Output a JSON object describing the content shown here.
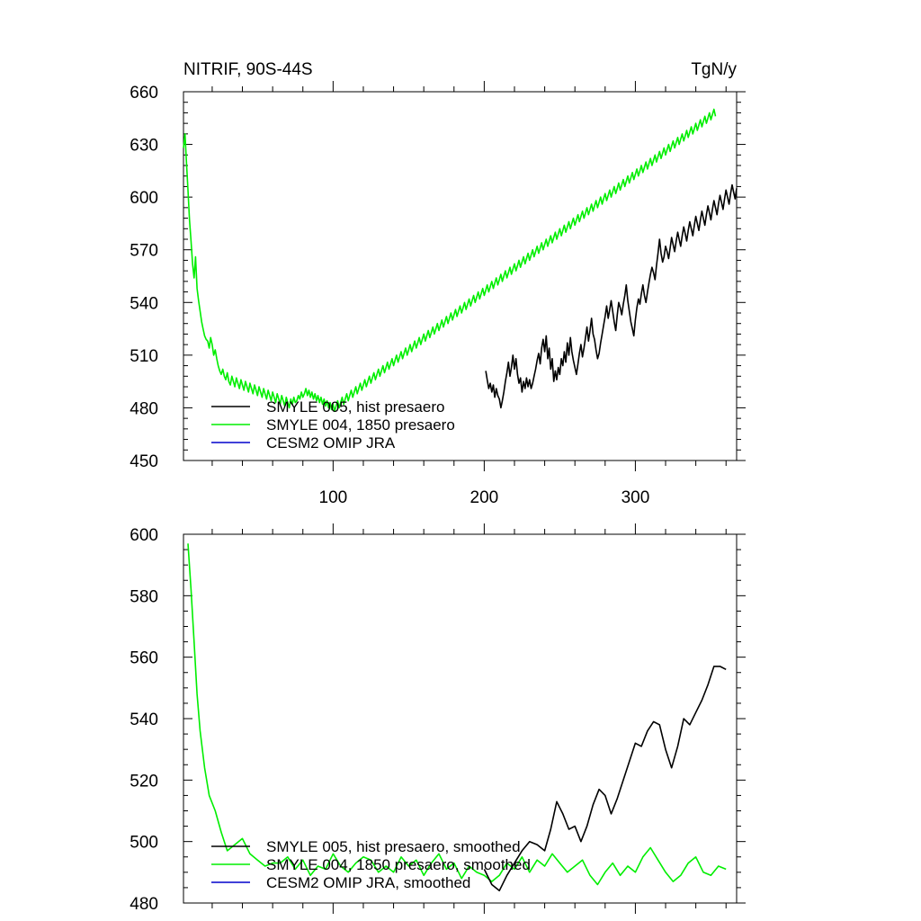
{
  "chart_data": [
    {
      "type": "line",
      "title_left": "NITRIF, 90S-44S",
      "title_right": "TgN/y",
      "xlim": [
        1,
        367
      ],
      "ylim": [
        450,
        660
      ],
      "x_ticks": [
        100,
        200,
        300
      ],
      "y_ticks": [
        450,
        480,
        510,
        540,
        570,
        600,
        630,
        660
      ],
      "legend": [
        "SMYLE 005, hist presaero",
        "SMYLE 004, 1850 presaero",
        "CESM2 OMIP JRA"
      ],
      "colors": [
        "#000000",
        "#00ee00",
        "#0000cc"
      ],
      "series": [
        {
          "name": "SMYLE 004, 1850 presaero",
          "color": "#00ee00",
          "x_start": 1,
          "values": [
            628,
            636,
            619,
            604,
            587,
            575,
            562,
            554,
            566,
            548,
            541,
            535,
            529,
            525,
            521,
            519,
            518,
            514,
            520,
            516,
            510,
            513,
            508,
            504,
            501,
            499,
            502,
            498,
            496,
            500,
            495,
            493,
            498,
            495,
            492,
            497,
            494,
            491,
            496,
            493,
            490,
            495,
            492,
            489,
            494,
            491,
            488,
            493,
            490,
            487,
            492,
            489,
            486,
            491,
            488,
            485,
            490,
            487,
            484,
            489,
            486,
            483,
            488,
            485,
            482,
            487,
            484,
            481,
            486,
            483,
            480,
            485,
            482,
            486,
            483,
            484,
            487,
            485,
            489,
            486,
            488,
            491,
            487,
            490,
            486,
            489,
            485,
            488,
            484,
            487,
            483,
            486,
            482,
            485,
            481,
            484,
            480,
            483,
            479,
            482,
            478,
            481,
            484,
            480,
            483,
            486,
            482,
            485,
            488,
            484,
            487,
            490,
            486,
            489,
            492,
            488,
            491,
            494,
            490,
            493,
            496,
            492,
            495,
            498,
            494,
            497,
            500,
            496,
            499,
            502,
            498,
            501,
            504,
            500,
            503,
            506,
            502,
            505,
            508,
            504,
            507,
            510,
            506,
            509,
            512,
            508,
            511,
            514,
            510,
            513,
            516,
            512,
            515,
            518,
            514,
            517,
            520,
            516,
            519,
            522,
            518,
            521,
            524,
            520,
            523,
            526,
            522,
            525,
            528,
            524,
            527,
            530,
            526,
            529,
            532,
            528,
            531,
            534,
            530,
            533,
            536,
            532,
            535,
            538,
            534,
            537,
            540,
            536,
            539,
            542,
            538,
            541,
            544,
            540,
            543,
            546,
            542,
            545,
            548,
            544,
            547,
            550,
            546,
            549,
            552,
            548,
            551,
            554,
            550,
            553,
            556,
            552,
            555,
            558,
            554,
            557,
            560,
            556,
            559,
            562,
            558,
            561,
            564,
            560,
            563,
            566,
            562,
            565,
            568,
            564,
            567,
            570,
            566,
            569,
            572,
            568,
            571,
            574,
            570,
            573,
            576,
            572,
            575,
            578,
            574,
            577,
            580,
            576,
            579,
            582,
            578,
            581,
            584,
            580,
            583,
            586,
            582,
            585,
            588,
            584,
            587,
            590,
            586,
            589,
            592,
            588,
            591,
            594,
            590,
            593,
            596,
            592,
            595,
            598,
            594,
            597,
            600,
            596,
            599,
            602,
            598,
            601,
            604,
            600,
            603,
            606,
            602,
            605,
            608,
            604,
            607,
            610,
            606,
            609,
            612,
            608,
            611,
            614,
            610,
            613,
            616,
            612,
            615,
            618,
            614,
            617,
            620,
            616,
            619,
            622,
            618,
            621,
            624,
            620,
            623,
            626,
            622,
            625,
            628,
            624,
            627,
            630,
            626,
            629,
            632,
            628,
            631,
            634,
            630,
            633,
            636,
            632,
            635,
            638,
            634,
            637,
            640,
            636,
            639,
            642,
            638,
            641,
            644,
            640,
            643,
            646,
            642,
            645,
            648,
            644,
            647,
            650,
            646
          ]
        },
        {
          "name": "SMYLE 005, hist presaero",
          "color": "#000000",
          "x_start": 201,
          "values": [
            501,
            496,
            491,
            494,
            489,
            493,
            486,
            491,
            487,
            485,
            480,
            484,
            489,
            495,
            500,
            506,
            498,
            503,
            510,
            502,
            508,
            499,
            494,
            497,
            489,
            495,
            491,
            497,
            492,
            496,
            491,
            494,
            498,
            502,
            507,
            511,
            505,
            514,
            519,
            512,
            521,
            508,
            514,
            502,
            508,
            495,
            501,
            496,
            503,
            499,
            508,
            504,
            512,
            506,
            517,
            510,
            520,
            512,
            507,
            503,
            499,
            505,
            511,
            516,
            509,
            514,
            520,
            526,
            518,
            524,
            531,
            522,
            519,
            513,
            508,
            511,
            517,
            522,
            527,
            532,
            538,
            531,
            536,
            541,
            535,
            529,
            524,
            533,
            540,
            537,
            533,
            539,
            544,
            550,
            541,
            535,
            529,
            525,
            521,
            530,
            537,
            542,
            539,
            545,
            550,
            544,
            540,
            546,
            551,
            556,
            560,
            557,
            553,
            561,
            568,
            576,
            568,
            563,
            566,
            572,
            569,
            565,
            571,
            577,
            573,
            569,
            575,
            580,
            576,
            572,
            578,
            583,
            579,
            575,
            581,
            586,
            582,
            578,
            584,
            589,
            585,
            581,
            587,
            592,
            588,
            584,
            590,
            595,
            591,
            587,
            593,
            598,
            594,
            590,
            596,
            601,
            597,
            593,
            599,
            604,
            600,
            596,
            602,
            607,
            603,
            599,
            605
          ]
        }
      ]
    },
    {
      "type": "line",
      "xlim": [
        1,
        367
      ],
      "ylim": [
        480,
        600
      ],
      "x_ticks": [
        100,
        200,
        300
      ],
      "y_ticks": [
        480,
        500,
        520,
        540,
        560,
        580,
        600
      ],
      "legend": [
        "SMYLE 005, hist presaero, smoothed",
        "SMYLE 004, 1850 presaero, smoothed",
        "CESM2 OMIP JRA, smoothed"
      ],
      "colors": [
        "#000000",
        "#00ee00",
        "#0000cc"
      ],
      "series": [
        {
          "name": "SMYLE 004, 1850 presaero, smoothed",
          "color": "#00ee00",
          "x_points": [
            4,
            6,
            8,
            10,
            12,
            15,
            18,
            22,
            26,
            30,
            35,
            40,
            45,
            50,
            55,
            60,
            65,
            70,
            75,
            80,
            85,
            90,
            95,
            100,
            105,
            110,
            115,
            120,
            125,
            130,
            135,
            140,
            145,
            150,
            155,
            160,
            165,
            170,
            175,
            180,
            185,
            190,
            195,
            200,
            205,
            210,
            215,
            220,
            225,
            230,
            235,
            240,
            245,
            250,
            255,
            260,
            265,
            270,
            275,
            280,
            285,
            290,
            295,
            300,
            305,
            310,
            315,
            320,
            325,
            330,
            335,
            340,
            345,
            350,
            355,
            360
          ],
          "values": [
            597,
            582,
            565,
            548,
            536,
            524,
            515,
            510,
            503,
            497,
            499,
            501,
            496,
            494,
            492,
            493,
            493,
            495,
            491,
            494,
            489,
            492,
            491,
            496,
            492,
            490,
            493,
            495,
            494,
            490,
            492,
            490,
            495,
            492,
            494,
            489,
            493,
            496,
            491,
            493,
            488,
            492,
            490,
            489,
            487,
            489,
            493,
            491,
            495,
            490,
            494,
            492,
            496,
            493,
            490,
            492,
            494,
            489,
            486,
            490,
            493,
            489,
            492,
            490,
            495,
            498,
            494,
            490,
            487,
            489,
            493,
            495,
            490,
            489,
            492,
            491
          ]
        },
        {
          "name": "SMYLE 005, hist presaero, smoothed",
          "color": "#000000",
          "x_points": [
            200,
            205,
            210,
            215,
            220,
            225,
            230,
            235,
            240,
            244,
            248,
            252,
            256,
            260,
            264,
            268,
            272,
            276,
            280,
            284,
            288,
            292,
            296,
            300,
            304,
            308,
            312,
            316,
            320,
            324,
            328,
            332,
            336,
            340,
            344,
            348,
            352,
            356,
            360
          ],
          "values": [
            491,
            486,
            484,
            489,
            493,
            497,
            500,
            499,
            497,
            504,
            513,
            509,
            504,
            505,
            500,
            505,
            512,
            517,
            515,
            509,
            514,
            520,
            526,
            532,
            531,
            536,
            539,
            538,
            530,
            524,
            531,
            540,
            538,
            542,
            546,
            551,
            557,
            557,
            556
          ]
        }
      ]
    }
  ]
}
